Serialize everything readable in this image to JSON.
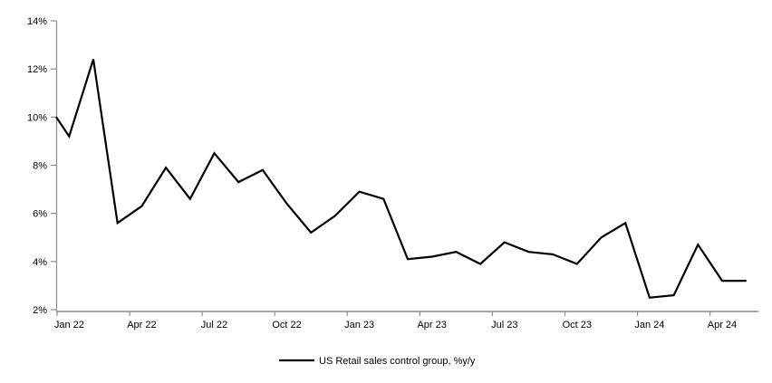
{
  "chart_data": {
    "type": "line",
    "title": "",
    "legend_label": "US Retail sales control group, %y/y",
    "unit": "percent year-over-year",
    "ylim": [
      2,
      14
    ],
    "y_tick_values": [
      2,
      4,
      6,
      8,
      10,
      12,
      14
    ],
    "y_tick_labels": [
      "2%",
      "4%",
      "6%",
      "8%",
      "10%",
      "12%",
      "14%"
    ],
    "x_tick_labels": [
      "Jan 22",
      "Apr 22",
      "Jul 22",
      "Oct 22",
      "Jan 23",
      "Apr 23",
      "Jul 23",
      "Oct 23",
      "Jan 24",
      "Apr 24"
    ],
    "x_tick_every_n_months": 3,
    "grid": "off",
    "legend_position": "bottom-center",
    "categories": [
      "Jan 22",
      "Feb 22",
      "Mar 22",
      "Apr 22",
      "May 22",
      "Jun 22",
      "Jul 22",
      "Aug 22",
      "Sep 22",
      "Oct 22",
      "Nov 22",
      "Dec 22",
      "Jan 23",
      "Feb 23",
      "Mar 23",
      "Apr 23",
      "May 23",
      "Jun 23",
      "Jul 23",
      "Aug 23",
      "Sep 23",
      "Oct 23",
      "Nov 23",
      "Dec 23",
      "Jan 24",
      "Feb 24",
      "Mar 24",
      "Apr 24",
      "May 24"
    ],
    "values": [
      9.2,
      12.4,
      5.6,
      6.3,
      7.9,
      6.6,
      8.5,
      7.3,
      7.8,
      6.4,
      5.2,
      5.9,
      6.9,
      6.6,
      4.1,
      4.2,
      4.4,
      3.9,
      4.8,
      4.4,
      4.3,
      3.9,
      5.0,
      5.6,
      2.5,
      2.6,
      4.7,
      3.2,
      3.2
    ],
    "left_edge_clipped_value": 10.0,
    "colors": {
      "line": "#000000",
      "axis": "#8c8c8c",
      "text": "#000000",
      "background": "#ffffff"
    }
  }
}
